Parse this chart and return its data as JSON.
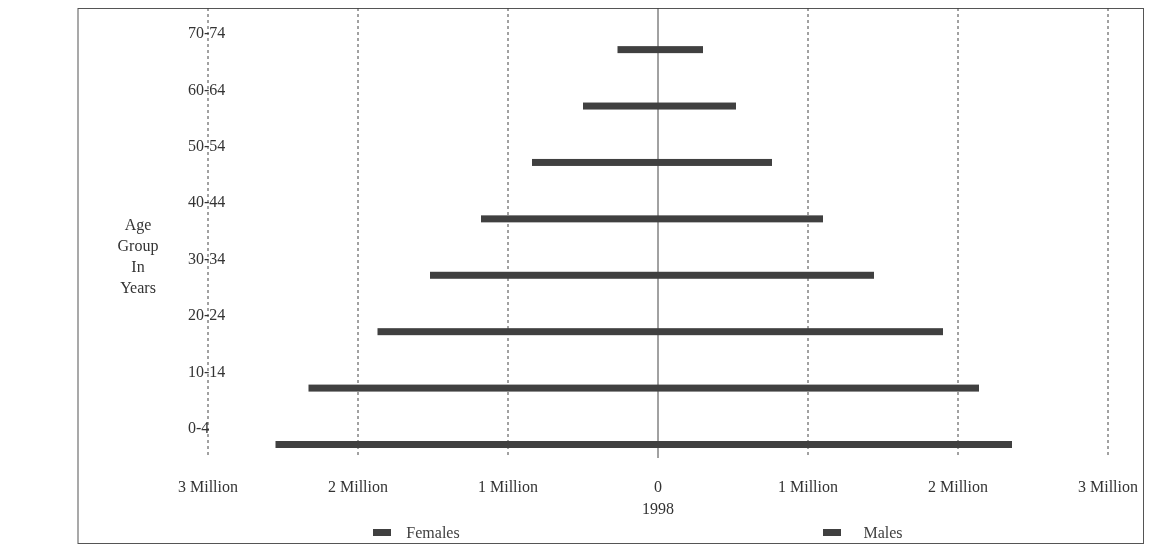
{
  "chart_data": {
    "type": "bar",
    "orientation": "horizontal",
    "stacked": true,
    "xlabel": "1998",
    "ylabel": "Age Group In Years",
    "categories": [
      "70-74",
      "60-64",
      "50-54",
      "40-44",
      "30-34",
      "20-24",
      "10-14",
      "0-4"
    ],
    "series": [
      {
        "name": "Females",
        "color": "#404040",
        "values": [
          -0.27,
          -0.5,
          -0.84,
          -1.18,
          -1.52,
          -1.87,
          -2.33,
          -2.55
        ]
      },
      {
        "name": "Males",
        "color": "#404040",
        "values": [
          0.3,
          0.52,
          0.76,
          1.1,
          1.44,
          1.9,
          2.14,
          2.36
        ]
      }
    ],
    "xlim": [
      -3,
      3
    ],
    "xticks": [
      {
        "value": -3,
        "label": "3 Million"
      },
      {
        "value": -2,
        "label": "2 Million"
      },
      {
        "value": -1,
        "label": "1 Million"
      },
      0,
      {
        "value": 1,
        "label": "1 Million"
      },
      {
        "value": 2,
        "label": "2 Million"
      },
      {
        "value": 3,
        "label": "3 Million"
      }
    ],
    "grid": "x",
    "legend": "bottom"
  }
}
